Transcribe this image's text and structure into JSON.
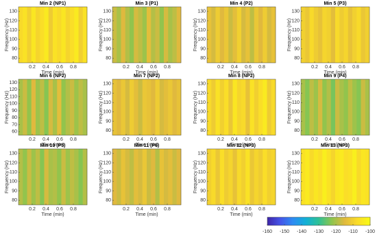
{
  "chart_data": [
    {
      "type": "heatmap",
      "title": "Min 2 (NP1)",
      "xlabel": "Time (min)",
      "ylabel": "Frequency (Hz)",
      "xlim": [
        0,
        1
      ],
      "ylim": [
        75,
        135
      ],
      "xticks": [
        0.2,
        0.4,
        0.6,
        0.8
      ],
      "yticks": [
        80,
        90,
        100,
        110,
        120,
        130
      ],
      "values": [
        -108,
        -106,
        -110,
        -105,
        -109,
        -107,
        -104,
        -111,
        -106,
        -108,
        -105,
        -109,
        -107,
        -104,
        -110,
        -106
      ]
    },
    {
      "type": "heatmap",
      "title": "Min 3 (P1)",
      "xlabel": "Time (min)",
      "ylabel": "Frequency (Hz)",
      "xlim": [
        0,
        1
      ],
      "ylim": [
        75,
        135
      ],
      "xticks": [
        0.2,
        0.4,
        0.6,
        0.8
      ],
      "yticks": [
        80,
        90,
        100,
        110,
        120,
        130
      ],
      "values": [
        -117,
        -120,
        -115,
        -119,
        -122,
        -116,
        -118,
        -121,
        -114,
        -119,
        -117,
        -122,
        -116,
        -120,
        -118,
        -115
      ]
    },
    {
      "type": "heatmap",
      "title": "Min 4 (P2)",
      "xlabel": "Time (min)",
      "ylabel": "Frequency (Hz)",
      "xlim": [
        0,
        1
      ],
      "ylim": [
        75,
        135
      ],
      "xticks": [
        0.2,
        0.4,
        0.6,
        0.8
      ],
      "yticks": [
        80,
        90,
        100,
        110,
        120,
        130
      ],
      "values": [
        -113,
        -116,
        -111,
        -115,
        -112,
        -117,
        -114,
        -110,
        -116,
        -113,
        -118,
        -112,
        -115,
        -111,
        -116,
        -113
      ]
    },
    {
      "type": "heatmap",
      "title": "Min 5 (P3)",
      "xlabel": "Time (min)",
      "ylabel": "Frequency (Hz)",
      "xlim": [
        0,
        1
      ],
      "ylim": [
        75,
        135
      ],
      "xticks": [
        0.2,
        0.4,
        0.6,
        0.8
      ],
      "yticks": [
        80,
        90,
        100,
        110,
        120,
        130
      ],
      "values": [
        -110,
        -112,
        -108,
        -111,
        -113,
        -109,
        -110,
        -114,
        -108,
        -111,
        -109,
        -113,
        -110,
        -108,
        -112,
        -110
      ]
    },
    {
      "type": "heatmap",
      "title": "Min 6 (NP2)",
      "xlabel": "Time (min)",
      "ylabel": "Frequency (Hz)",
      "xlim": [
        0,
        1
      ],
      "ylim": [
        55,
        135
      ],
      "xticks": [
        0.2,
        0.4,
        0.6,
        0.8
      ],
      "yticks": [
        60,
        70,
        80,
        90,
        100,
        110,
        120,
        130
      ],
      "values": [
        -120,
        -117,
        -122,
        -115,
        -121,
        -118,
        -123,
        -116,
        -120,
        -114,
        -122,
        -119,
        -117,
        -121,
        -118,
        -120
      ]
    },
    {
      "type": "heatmap",
      "title": "Min 7 (NP2)",
      "xlabel": "Time (min)",
      "ylabel": "Frequency (Hz)",
      "xlim": [
        0,
        1
      ],
      "ylim": [
        75,
        135
      ],
      "xticks": [
        0.2,
        0.4,
        0.6,
        0.8
      ],
      "yticks": [
        80,
        90,
        100,
        110,
        120,
        130
      ],
      "values": [
        -113,
        -115,
        -112,
        -116,
        -111,
        -114,
        -117,
        -112,
        -113,
        -115,
        -111,
        -116,
        -114,
        -112,
        -115,
        -113
      ]
    },
    {
      "type": "heatmap",
      "title": "Min 8 (NP2)",
      "xlabel": "Time (min)",
      "ylabel": "Frequency (Hz)",
      "xlim": [
        0,
        1
      ],
      "ylim": [
        75,
        135
      ],
      "xticks": [
        0.2,
        0.4,
        0.6,
        0.8
      ],
      "yticks": [
        80,
        90,
        100,
        110,
        120,
        130
      ],
      "values": [
        -108,
        -111,
        -106,
        -110,
        -107,
        -112,
        -105,
        -109,
        -108,
        -113,
        -106,
        -110,
        -107,
        -104,
        -111,
        -108
      ]
    },
    {
      "type": "heatmap",
      "title": "Min 9 (P4)",
      "xlabel": "Time (min)",
      "ylabel": "Frequency (Hz)",
      "xlim": [
        0,
        1
      ],
      "ylim": [
        75,
        135
      ],
      "xticks": [
        0.2,
        0.4,
        0.6,
        0.8
      ],
      "yticks": [
        80,
        90,
        100,
        110,
        120,
        130
      ],
      "values": [
        -120,
        -123,
        -118,
        -121,
        -116,
        -122,
        -119,
        -124,
        -117,
        -120,
        -122,
        -118,
        -121,
        -123,
        -117,
        -120
      ]
    },
    {
      "type": "heatmap",
      "title": "Min 10 (P5)",
      "xlabel": "Time (min)",
      "ylabel": "Frequency (Hz)",
      "xlim": [
        0,
        1
      ],
      "ylim": [
        75,
        135
      ],
      "xticks": [
        0.2,
        0.4,
        0.6,
        0.8
      ],
      "yticks": [
        80,
        90,
        100,
        110,
        120,
        130
      ],
      "values": [
        -119,
        -122,
        -117,
        -121,
        -118,
        -123,
        -116,
        -120,
        -119,
        -122,
        -117,
        -121,
        -118,
        -120,
        -123,
        -119
      ]
    },
    {
      "type": "heatmap",
      "title": "Min 11 (P6)",
      "xlabel": "Time (min)",
      "ylabel": "Frequency (Hz)",
      "xlim": [
        0,
        1
      ],
      "ylim": [
        75,
        135
      ],
      "xticks": [
        0.2,
        0.4,
        0.6,
        0.8
      ],
      "yticks": [
        80,
        90,
        100,
        110,
        120,
        130
      ],
      "values": [
        -115,
        -117,
        -113,
        -116,
        -118,
        -114,
        -116,
        -112,
        -117,
        -115,
        -119,
        -113,
        -116,
        -114,
        -117,
        -115
      ]
    },
    {
      "type": "heatmap",
      "title": "Min 12 (NP3)",
      "xlabel": "Time (min)",
      "ylabel": "Frequency (Hz)",
      "xlim": [
        0,
        1
      ],
      "ylim": [
        75,
        135
      ],
      "xticks": [
        0.2,
        0.4,
        0.6,
        0.8
      ],
      "yticks": [
        80,
        90,
        100,
        110,
        120,
        130
      ],
      "values": [
        -110,
        -108,
        -112,
        -107,
        -111,
        -109,
        -113,
        -108,
        -110,
        -106,
        -112,
        -109,
        -111,
        -107,
        -110,
        -109
      ]
    },
    {
      "type": "heatmap",
      "title": "Min 13 (NP3)",
      "xlabel": "Time (min)",
      "ylabel": "Frequency (Hz)",
      "xlim": [
        0,
        1
      ],
      "ylim": [
        75,
        135
      ],
      "xticks": [
        0.2,
        0.4,
        0.6,
        0.8
      ],
      "yticks": [
        80,
        90,
        100,
        110,
        120,
        130
      ],
      "values": [
        -106,
        -104,
        -108,
        -105,
        -107,
        -103,
        -106,
        -109,
        -105,
        -104,
        -107,
        -106,
        -103,
        -108,
        -105,
        -106
      ]
    },
    {
      "type": "colorbar",
      "clim": [
        -160,
        -100
      ],
      "ticks": [
        -160,
        -150,
        -140,
        -130,
        -120,
        -110,
        -100
      ],
      "colormap": [
        "#3e26a8",
        "#4554e8",
        "#2d8cf2",
        "#12b0d6",
        "#2fc196",
        "#8cc54e",
        "#e0b93e",
        "#fadc29",
        "#f9fb15"
      ]
    }
  ]
}
